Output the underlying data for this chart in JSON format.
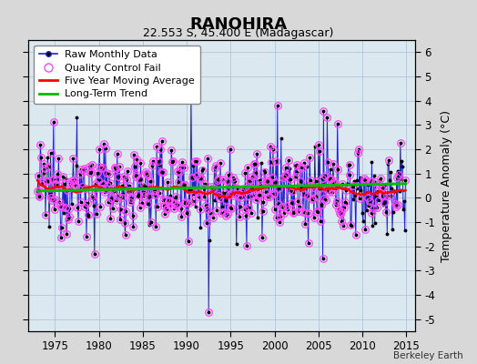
{
  "title": "RANOHIRA",
  "subtitle": "22.553 S, 45.400 E (Madagascar)",
  "ylabel_right": "Temperature Anomaly (°C)",
  "credit": "Berkeley Earth",
  "xlim": [
    1972.0,
    2016.0
  ],
  "ylim": [
    -5.5,
    6.5
  ],
  "yticks": [
    -5,
    -4,
    -3,
    -2,
    -1,
    0,
    1,
    2,
    3,
    4,
    5,
    6
  ],
  "xticks": [
    1975,
    1980,
    1985,
    1990,
    1995,
    2000,
    2005,
    2010,
    2015
  ],
  "background_color": "#d8d8d8",
  "plot_bg_color": "#dce8f0",
  "grid_color": "#b0c4d8",
  "raw_line_color": "#2222cc",
  "raw_marker_color": "#000000",
  "qc_fail_color": "#ff44ff",
  "moving_avg_color": "#ff0000",
  "trend_color": "#00bb00",
  "title_fontsize": 13,
  "subtitle_fontsize": 9,
  "legend_fontsize": 8
}
